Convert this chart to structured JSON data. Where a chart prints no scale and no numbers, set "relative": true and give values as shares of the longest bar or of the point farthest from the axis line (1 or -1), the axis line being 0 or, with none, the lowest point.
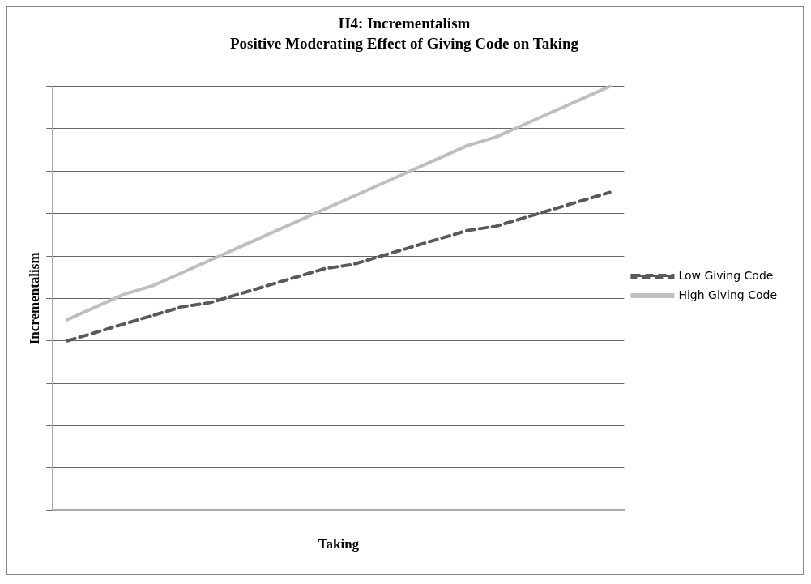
{
  "chart_data": {
    "type": "line",
    "title": "H4: Incrementalism",
    "subtitle": "Positive Moderating Effect of Giving Code on Taking",
    "xlabel": "Taking",
    "ylabel": "Incrementalism",
    "relative": true,
    "grid": "y",
    "legend": "right",
    "marker": "none",
    "categories": [
      null,
      null,
      null,
      null,
      null,
      null,
      null,
      null,
      null,
      null,
      null,
      null,
      null,
      null,
      null,
      null,
      null,
      null,
      null,
      null
    ],
    "series": [
      {
        "name": "Low Giving Code",
        "color": "#595959",
        "line_style": "dashed",
        "values": [
          0.4,
          0.42,
          0.44,
          0.46,
          0.48,
          0.49,
          0.51,
          0.53,
          0.55,
          0.57,
          0.58,
          0.6,
          0.62,
          0.64,
          0.66,
          0.67,
          0.69,
          0.71,
          0.73,
          0.75
        ]
      },
      {
        "name": "High Giving Code",
        "color": "#bfbfbf",
        "line_style": "solid",
        "values": [
          0.45,
          0.48,
          0.51,
          0.53,
          0.56,
          0.59,
          0.62,
          0.65,
          0.68,
          0.71,
          0.74,
          0.77,
          0.8,
          0.83,
          0.86,
          0.88,
          0.91,
          0.94,
          0.97,
          1.0
        ]
      }
    ]
  }
}
